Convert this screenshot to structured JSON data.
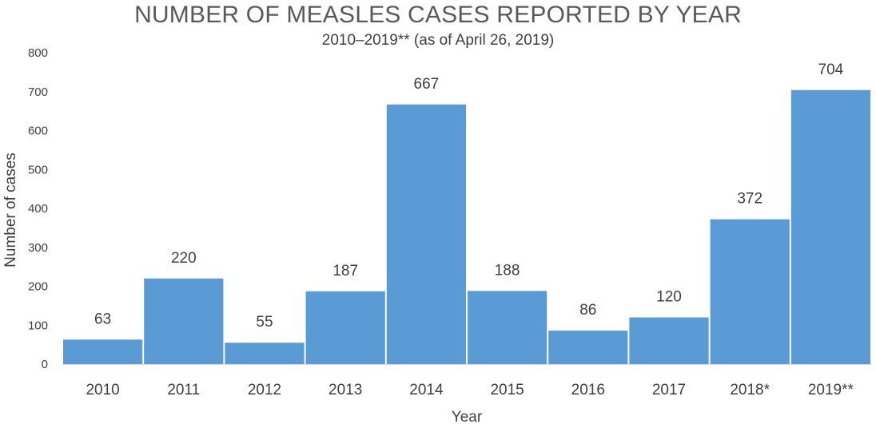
{
  "chart_data": {
    "type": "bar",
    "title": "NUMBER OF MEASLES CASES REPORTED BY YEAR",
    "subtitle": "2010–2019** (as of April 26, 2019)",
    "xlabel": "Year",
    "ylabel": "Number of cases",
    "categories": [
      "2010",
      "2011",
      "2012",
      "2013",
      "2014",
      "2015",
      "2016",
      "2017",
      "2018*",
      "2019**"
    ],
    "values": [
      63,
      220,
      55,
      187,
      667,
      188,
      86,
      120,
      372,
      704
    ],
    "ylim": [
      0,
      800
    ],
    "yticks": [
      "0",
      "100",
      "200",
      "300",
      "400",
      "500",
      "600",
      "700",
      "800"
    ],
    "grid": false,
    "legend": "none",
    "bar_color": "#5B9BD5"
  }
}
